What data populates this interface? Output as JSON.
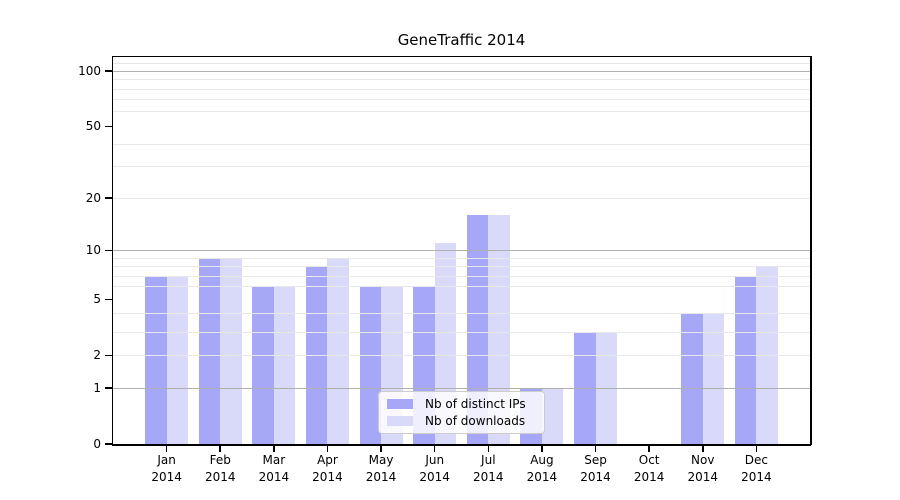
{
  "chart_data": {
    "type": "bar",
    "title": "GeneTraffic 2014",
    "categories": [
      "Jan",
      "Feb",
      "Mar",
      "Apr",
      "May",
      "Jun",
      "Jul",
      "Aug",
      "Sep",
      "Oct",
      "Nov",
      "Dec"
    ],
    "year": "2014",
    "series": [
      {
        "name": "Nb of distinct IPs",
        "color": "#a7a7f8",
        "values": [
          7,
          9,
          6,
          8,
          6,
          6,
          16,
          1,
          3,
          0,
          4,
          7
        ]
      },
      {
        "name": "Nb of downloads",
        "color": "#d9d9fa",
        "values": [
          7,
          9,
          6,
          9,
          6,
          11,
          16,
          1,
          3,
          0,
          4,
          8
        ]
      }
    ],
    "xlabel": "",
    "ylabel": "",
    "yscale": "log10(1+y)",
    "ylim": [
      0,
      119
    ],
    "yticks_labeled": [
      0,
      1,
      2,
      5,
      10,
      20,
      50,
      100
    ],
    "yticks_major_grid": [
      1,
      10,
      100
    ],
    "yticks_minor_grid": [
      2,
      3,
      4,
      6,
      7,
      8,
      9,
      20,
      30,
      40,
      60,
      70,
      80,
      90,
      110
    ],
    "grid": true,
    "legend": {
      "position": "lower center",
      "entries": [
        "Nb of distinct IPs",
        "Nb of downloads"
      ]
    },
    "colors": {
      "bar_distinct_ips": "#a7a7f8",
      "bar_downloads": "#d9d9fa",
      "grid_major": "#b0b0b0",
      "grid_minor": "#e8e8e8",
      "spine": "#000000",
      "text": "#000000",
      "legend_border": "#cccccc"
    }
  }
}
